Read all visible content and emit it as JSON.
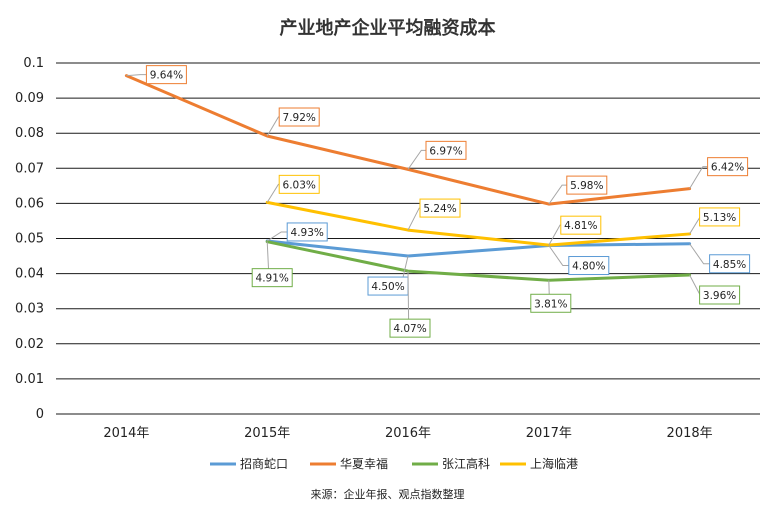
{
  "chart_data": {
    "type": "line",
    "title": "产业地产企业平均融资成本",
    "categories": [
      "2014年",
      "2015年",
      "2016年",
      "2017年",
      "2018年"
    ],
    "ylim": [
      0,
      0.1
    ],
    "yticks": [
      "0",
      "0.01",
      "0.02",
      "0.03",
      "0.04",
      "0.05",
      "0.06",
      "0.07",
      "0.08",
      "0.09",
      "0.1"
    ],
    "grid": true,
    "legend_position": "bottom",
    "series": [
      {
        "name": "招商蛇口",
        "color": "#5b9bd5",
        "values": [
          null,
          0.0493,
          0.045,
          0.048,
          0.0485
        ],
        "labels": [
          "",
          "4.93%",
          "4.50%",
          "4.80%",
          "4.85%"
        ]
      },
      {
        "name": "华夏幸福",
        "color": "#ed7d31",
        "values": [
          0.0964,
          0.0792,
          0.0697,
          0.0598,
          0.0642
        ],
        "labels": [
          "9.64%",
          "7.92%",
          "6.97%",
          "5.98%",
          "6.42%"
        ]
      },
      {
        "name": "张江高科",
        "color": "#70ad47",
        "values": [
          null,
          0.0491,
          0.0407,
          0.0381,
          0.0396
        ],
        "labels": [
          "",
          "4.91%",
          "4.07%",
          "3.81%",
          "3.96%"
        ]
      },
      {
        "name": "上海临港",
        "color": "#ffc000",
        "values": [
          null,
          0.0603,
          0.0524,
          0.0481,
          0.0513
        ],
        "labels": [
          "",
          "6.03%",
          "5.24%",
          "4.81%",
          "5.13%"
        ]
      }
    ]
  },
  "source": "来源：企业年报、观点指数整理"
}
